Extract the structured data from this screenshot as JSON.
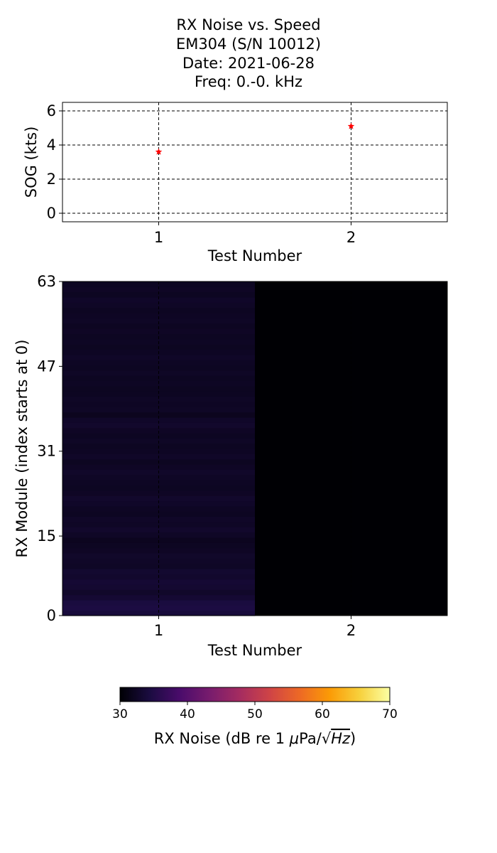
{
  "title_lines": [
    "RX Noise vs. Speed",
    "EM304 (S/N 10012)",
    "Date: 2021-06-28",
    "Freq: 0.-0. kHz"
  ],
  "colors": {
    "marker": "#ff0000",
    "grid": "#000000",
    "colormap_stops": [
      "#000004",
      "#1b0c41",
      "#4a0c6b",
      "#781c6d",
      "#a52c60",
      "#cf4446",
      "#ed6925",
      "#fb9b06",
      "#f7d13d",
      "#fcffa4"
    ]
  },
  "chart_data": [
    {
      "type": "scatter",
      "name": "sog-plot",
      "x": [
        1,
        2
      ],
      "y": [
        3.6,
        5.1
      ],
      "xlabel": "Test Number",
      "ylabel": "SOG (kts)",
      "xlim": [
        0.5,
        2.5
      ],
      "ylim": [
        -0.5,
        6.5
      ],
      "xticks": [
        1,
        2
      ],
      "yticks": [
        0,
        2,
        4,
        6
      ],
      "grid": true,
      "marker": "star"
    },
    {
      "type": "heatmap",
      "name": "rx-noise-heatmap",
      "x": [
        1,
        2
      ],
      "y_range": [
        0,
        63
      ],
      "yticks": [
        0,
        15,
        31,
        47,
        63
      ],
      "xticks": [
        1,
        2
      ],
      "xlabel": "Test Number",
      "ylabel": "RX Module (index starts at 0)",
      "values_test_1": [
        34.0,
        34.5,
        34.3,
        33.4,
        32.8,
        33.3,
        33.5,
        33.0,
        33.2,
        32.5,
        32.6,
        32.8,
        32.4,
        32.2,
        32.0,
        32.5,
        32.9,
        32.5,
        32.6,
        32.2,
        32.3,
        32.7,
        32.9,
        32.4,
        32.2,
        32.3,
        32.5,
        32.8,
        32.4,
        32.1,
        32.6,
        32.3,
        32.2,
        32.5,
        32.2,
        32.4,
        32.9,
        32.7,
        31.9,
        32.5,
        32.3,
        32.5,
        32.2,
        32.1,
        32.3,
        32.2,
        32.5,
        32.2,
        32.3,
        32.6,
        32.3,
        32.1,
        32.3,
        32.2,
        32.4,
        32.2,
        32.5,
        32.3,
        32.2,
        32.5,
        32.7,
        32.2,
        32.4,
        32.2
      ],
      "values_test_2": 30,
      "colorbar": {
        "label": "RX Noise (dB re 1 μPa/√Hz)",
        "label_prefix": "RX Noise (dB re 1 ",
        "label_mu": "μ",
        "label_pa": "Pa/",
        "label_sqrt": "√",
        "label_hz": "Hz",
        "label_suffix": ")",
        "vmin": 30,
        "vmax": 70,
        "ticks": [
          30,
          40,
          50,
          60,
          70
        ],
        "orientation": "horizontal"
      }
    }
  ]
}
